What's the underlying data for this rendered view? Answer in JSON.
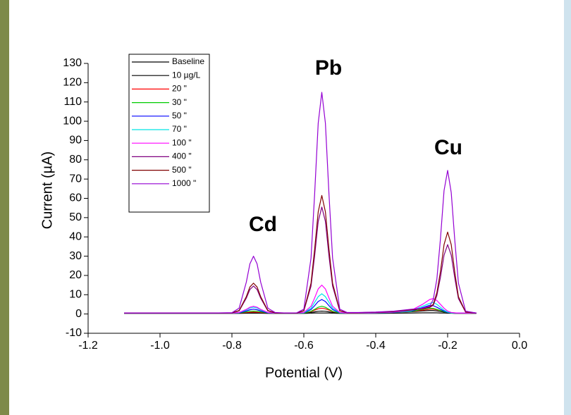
{
  "chart_data": {
    "type": "line",
    "x_label": "Potential (V)",
    "y_label": "Current (µA)",
    "annotations": [
      "Cd",
      "Pb",
      "Cu"
    ],
    "xlim": [
      -1.2,
      0.0
    ],
    "ylim": [
      -10,
      130
    ],
    "xticks": [
      -1.2,
      {
        "value": -1.0,
        "label": "-1.0"
      },
      -0.8,
      -0.6,
      -0.4,
      -0.2,
      {
        "value": 0.0,
        "label": "0.0"
      }
    ],
    "yticks": [
      -10,
      0,
      10,
      20,
      30,
      40,
      50,
      60,
      70,
      80,
      90,
      100,
      110,
      120,
      130
    ],
    "x": [
      -1.1,
      -1.0,
      -0.9,
      -0.85,
      -0.8,
      -0.78,
      -0.76,
      -0.75,
      -0.74,
      -0.73,
      -0.72,
      -0.7,
      -0.68,
      -0.65,
      -0.62,
      -0.6,
      -0.58,
      -0.57,
      -0.56,
      -0.55,
      -0.54,
      -0.53,
      -0.52,
      -0.5,
      -0.48,
      -0.45,
      -0.4,
      -0.35,
      -0.3,
      -0.27,
      -0.25,
      -0.24,
      -0.23,
      -0.22,
      -0.21,
      -0.2,
      -0.19,
      -0.18,
      -0.17,
      -0.15,
      -0.12
    ],
    "series": [
      {
        "name": "Baseline",
        "color": "#000000",
        "values": [
          0.3,
          0.3,
          0.3,
          0.3,
          0.3,
          0.3,
          0.4,
          0.4,
          0.4,
          0.4,
          0.4,
          0.3,
          0.3,
          0.3,
          0.3,
          0.3,
          0.4,
          0.5,
          0.5,
          0.5,
          0.5,
          0.5,
          0.4,
          0.3,
          0.3,
          0.3,
          0.3,
          0.4,
          0.5,
          0.6,
          0.6,
          0.6,
          0.6,
          0.5,
          0.5,
          0.4,
          0.4,
          0.3,
          0.3,
          0.3,
          0.3
        ]
      },
      {
        "name": "10 µg/L",
        "color": "#000000",
        "values": [
          0.5,
          0.5,
          0.5,
          0.5,
          0.5,
          0.6,
          0.6,
          0.7,
          0.7,
          0.7,
          0.6,
          0.5,
          0.5,
          0.5,
          0.5,
          0.6,
          0.8,
          1.1,
          1.4,
          1.5,
          1.4,
          1.1,
          0.8,
          0.6,
          0.5,
          0.5,
          0.6,
          0.8,
          1.2,
          1.6,
          1.8,
          1.8,
          1.6,
          1.3,
          1,
          0.8,
          0.6,
          0.5,
          0.5,
          0.5,
          0.5
        ]
      },
      {
        "name": "20 \"",
        "color": "#ff0000",
        "values": [
          0.5,
          0.5,
          0.5,
          0.5,
          0.5,
          0.6,
          0.8,
          0.9,
          1,
          0.9,
          0.8,
          0.6,
          0.5,
          0.5,
          0.5,
          0.6,
          1.2,
          2,
          2.7,
          3,
          2.7,
          2,
          1.2,
          0.6,
          0.5,
          0.5,
          0.6,
          0.8,
          1.3,
          2,
          2.4,
          2.5,
          2.2,
          1.8,
          1.3,
          0.9,
          0.7,
          0.6,
          0.5,
          0.5,
          0.5
        ]
      },
      {
        "name": "30 \"",
        "color": "#00cc00",
        "values": [
          0.5,
          0.5,
          0.5,
          0.5,
          0.5,
          0.6,
          1.1,
          1.4,
          1.5,
          1.4,
          1.1,
          0.6,
          0.5,
          0.5,
          0.5,
          0.5,
          1.4,
          2.4,
          3.5,
          4,
          3.5,
          2.4,
          1.4,
          0.5,
          0.5,
          0.5,
          0.6,
          0.8,
          1.3,
          2.4,
          3,
          2.9,
          2.4,
          1.8,
          1.2,
          0.8,
          0.6,
          0.5,
          0.5,
          0.5,
          0.5
        ]
      },
      {
        "name": "50 \"",
        "color": "#0000ff",
        "values": [
          0.5,
          0.5,
          0.5,
          0.5,
          0.5,
          0.6,
          1.6,
          2.2,
          2.5,
          2.2,
          1.6,
          0.6,
          0.5,
          0.5,
          0.5,
          0.6,
          2.3,
          4.3,
          6.5,
          7.5,
          6.5,
          4.3,
          2.3,
          0.6,
          0.5,
          0.5,
          0.6,
          0.8,
          1.5,
          3.3,
          4.5,
          4.3,
          3.5,
          2.5,
          1.5,
          0.8,
          0.6,
          0.5,
          0.5,
          0.5,
          0.5
        ]
      },
      {
        "name": "70 \"",
        "color": "#00e5e5",
        "values": [
          0.5,
          0.5,
          0.5,
          0.5,
          0.5,
          0.7,
          2.1,
          3.1,
          3.5,
          3.1,
          2.1,
          0.7,
          0.5,
          0.5,
          0.5,
          0.7,
          3,
          6,
          9,
          10.5,
          9,
          6,
          3,
          0.7,
          0.5,
          0.5,
          0.6,
          0.9,
          1.7,
          4,
          5.5,
          6,
          5,
          3.5,
          2,
          1,
          0.6,
          0.5,
          0.5,
          0.5,
          0.5
        ]
      },
      {
        "name": "100 \"",
        "color": "#ff00ff",
        "values": [
          0.5,
          0.5,
          0.5,
          0.5,
          0.5,
          0.8,
          2.4,
          3.5,
          4,
          3.5,
          2.4,
          0.8,
          0.5,
          0.5,
          0.5,
          0.8,
          4,
          8.3,
          13,
          15,
          13,
          8.3,
          4,
          0.8,
          0.5,
          0.5,
          0.7,
          1,
          2,
          5,
          7.5,
          8,
          7,
          5,
          3,
          1.5,
          0.8,
          0.6,
          0.5,
          0.5,
          0.5
        ]
      },
      {
        "name": "400 \"",
        "color": "#800080",
        "values": [
          0.5,
          0.5,
          0.5,
          0.5,
          0.6,
          1.6,
          8.2,
          12.7,
          14.5,
          12.7,
          8.2,
          1.6,
          0.6,
          0.5,
          0.5,
          1.6,
          14.4,
          30,
          48,
          55.5,
          48,
          30,
          14.4,
          1.6,
          0.7,
          0.7,
          0.9,
          1.3,
          2.1,
          2.7,
          3.4,
          4.5,
          9.5,
          19,
          30.5,
          36,
          30.5,
          18.5,
          8,
          1,
          0.5
        ]
      },
      {
        "name": "500 \"",
        "color": "#800000",
        "values": [
          0.5,
          0.5,
          0.5,
          0.5,
          0.6,
          1.8,
          9,
          14,
          16,
          14,
          9,
          1.8,
          0.6,
          0.5,
          0.5,
          1.7,
          16,
          33.5,
          53,
          61.5,
          53,
          33.5,
          16,
          1.7,
          0.7,
          0.7,
          0.9,
          1.3,
          2.2,
          2.8,
          3.6,
          5,
          11,
          22,
          36,
          42.5,
          36,
          21.5,
          9,
          1,
          0.5
        ]
      },
      {
        "name": "1000 \"",
        "color": "#9400d3",
        "values": [
          0.5,
          0.5,
          0.5,
          0.5,
          0.7,
          3,
          16.5,
          26,
          30,
          26,
          16.5,
          3,
          0.8,
          0.5,
          0.6,
          2.5,
          29,
          62,
          99,
          115,
          99,
          62,
          29,
          2.5,
          0.8,
          0.8,
          1,
          1.5,
          2.5,
          3,
          4,
          7.5,
          18,
          39,
          64,
          74.5,
          63,
          38,
          16,
          1.5,
          0.5
        ]
      }
    ]
  }
}
